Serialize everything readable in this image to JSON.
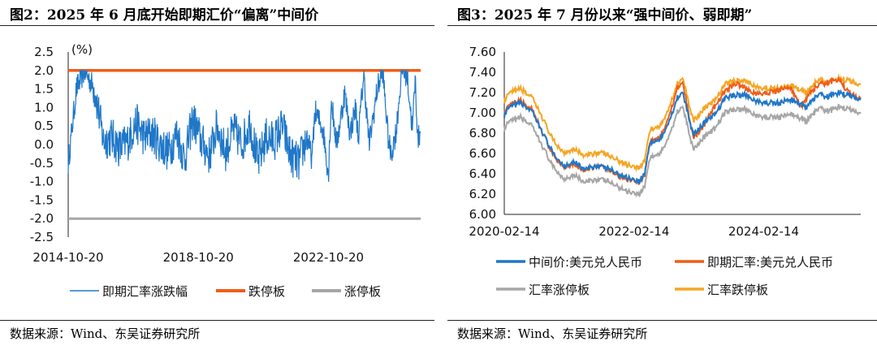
{
  "left": {
    "title": "图2：2025 年 6 月底开始即期汇价“偏离”中间价",
    "source": "数据来源：Wind、东吴证券研究所",
    "chart_data": {
      "type": "line",
      "ylabel": "(%)",
      "ylim": [
        -2.5,
        2.5
      ],
      "y_ticks": [
        "2.5",
        "2.0",
        "1.5",
        "1.0",
        "0.5",
        "0.0",
        "-0.5",
        "-1.0",
        "-1.5",
        "-2.0",
        "-2.5"
      ],
      "x_ticks": [
        "2014-10-20",
        "2018-10-20",
        "2022-10-20"
      ],
      "x_range": [
        "2014-10-20",
        "2025-08-20"
      ],
      "legend": [
        "即期汇率涨跌幅",
        "跌停板",
        "涨停板"
      ],
      "legend_position": "bottom",
      "colors": {
        "spread": "#1f77c8",
        "upper": "#ef5d18",
        "lower": "#a6a6a6"
      },
      "series": [
        {
          "name": "即期汇率涨跌幅",
          "x": [
            "2014-10-20",
            "2015-01-20",
            "2015-04-20",
            "2015-07-20",
            "2015-08-20",
            "2015-11-20",
            "2016-02-20",
            "2016-05-20",
            "2016-08-20",
            "2016-11-20",
            "2017-02-20",
            "2017-05-20",
            "2017-08-20",
            "2017-11-20",
            "2018-02-20",
            "2018-05-20",
            "2018-08-20",
            "2018-11-20",
            "2019-02-20",
            "2019-05-20",
            "2019-08-20",
            "2019-11-20",
            "2020-02-20",
            "2020-05-20",
            "2020-08-20",
            "2020-11-20",
            "2021-02-20",
            "2021-05-20",
            "2021-08-20",
            "2021-11-20",
            "2022-02-20",
            "2022-04-20",
            "2022-05-20",
            "2022-08-20",
            "2022-10-20",
            "2022-11-20",
            "2023-01-20",
            "2023-04-20",
            "2023-06-20",
            "2023-08-20",
            "2023-09-20",
            "2023-11-20",
            "2024-01-20",
            "2024-04-20",
            "2024-06-20",
            "2024-08-20",
            "2024-09-20",
            "2024-11-20",
            "2025-01-20",
            "2025-03-20",
            "2025-05-20",
            "2025-06-20",
            "2025-07-20",
            "2025-08-20"
          ],
          "values": [
            -0.5,
            1.5,
            2.0,
            1.6,
            1.4,
            0.1,
            0.2,
            -0.1,
            0.1,
            0.6,
            0.2,
            0.3,
            0.0,
            -0.2,
            0.3,
            -0.4,
            0.7,
            0.1,
            -0.3,
            0.5,
            -0.2,
            0.4,
            0.0,
            0.6,
            -0.5,
            0.2,
            0.1,
            0.5,
            -0.3,
            -0.5,
            0.2,
            -0.4,
            0.9,
            0.4,
            -0.8,
            1.2,
            0.0,
            1.4,
            0.3,
            1.0,
            0.2,
            1.9,
            0.0,
            1.5,
            2.0,
            0.2,
            -0.3,
            0.4,
            2.0,
            1.9,
            0.4,
            1.8,
            0.1,
            0.4
          ]
        },
        {
          "name": "跌停板",
          "values": [
            2.0,
            2.0
          ]
        },
        {
          "name": "涨停板",
          "values": [
            -2.0,
            -2.0
          ]
        }
      ]
    }
  },
  "right": {
    "title": "图3：2025 年 7 月份以来“强中间价、弱即期”",
    "source": "数据来源：Wind、东吴证券研究所",
    "chart_data": {
      "type": "line",
      "ylim": [
        6.0,
        7.6
      ],
      "y_ticks": [
        "7.60",
        "7.40",
        "7.20",
        "7.00",
        "6.80",
        "6.60",
        "6.40",
        "6.20",
        "6.00"
      ],
      "x_ticks": [
        "2020-02-14",
        "2022-02-14",
        "2024-02-14"
      ],
      "x_range": [
        "2020-02-14",
        "2025-08-14"
      ],
      "legend": [
        "中间价:美元兑人民币",
        "即期汇率:美元兑人民币",
        "汇率涨停板",
        "汇率跌停板"
      ],
      "legend_position": "bottom",
      "colors": {
        "mid": "#1f77c8",
        "spot": "#ef5d18",
        "upper": "#a6a6a6",
        "lower": "#f5a623"
      },
      "x": [
        "2020-02-14",
        "2020-03-14",
        "2020-05-14",
        "2020-07-14",
        "2020-09-14",
        "2020-11-14",
        "2021-01-14",
        "2021-03-14",
        "2021-05-14",
        "2021-07-14",
        "2021-09-14",
        "2021-11-14",
        "2022-01-14",
        "2022-03-14",
        "2022-04-14",
        "2022-05-14",
        "2022-07-14",
        "2022-09-14",
        "2022-10-14",
        "2022-11-14",
        "2023-01-14",
        "2023-03-14",
        "2023-05-14",
        "2023-07-14",
        "2023-09-14",
        "2023-11-14",
        "2024-01-14",
        "2024-03-14",
        "2024-05-14",
        "2024-07-14",
        "2024-09-14",
        "2024-10-14",
        "2024-12-14",
        "2025-02-14",
        "2025-04-14",
        "2025-06-14",
        "2025-08-14"
      ],
      "series": [
        {
          "name": "中间价:美元兑人民币",
          "values": [
            6.98,
            7.05,
            7.1,
            7.02,
            6.82,
            6.6,
            6.48,
            6.52,
            6.44,
            6.48,
            6.46,
            6.4,
            6.36,
            6.33,
            6.4,
            6.7,
            6.74,
            6.98,
            7.15,
            7.2,
            6.78,
            6.9,
            6.98,
            7.15,
            7.18,
            7.17,
            7.1,
            7.1,
            7.1,
            7.13,
            7.08,
            7.05,
            7.18,
            7.16,
            7.2,
            7.17,
            7.14
          ]
        },
        {
          "name": "即期汇率:美元兑人民币",
          "values": [
            7.0,
            7.07,
            7.12,
            7.04,
            6.82,
            6.58,
            6.47,
            6.5,
            6.42,
            6.48,
            6.45,
            6.38,
            6.35,
            6.32,
            6.38,
            6.72,
            6.76,
            7.05,
            7.25,
            7.3,
            6.75,
            6.88,
            7.06,
            7.22,
            7.3,
            7.23,
            7.18,
            7.2,
            7.23,
            7.25,
            7.05,
            7.15,
            7.27,
            7.3,
            7.33,
            7.18,
            7.15
          ]
        },
        {
          "name": "汇率涨停板",
          "values": [
            6.84,
            6.91,
            6.96,
            6.88,
            6.68,
            6.47,
            6.35,
            6.39,
            6.31,
            6.35,
            6.33,
            6.27,
            6.23,
            6.2,
            6.27,
            6.56,
            6.6,
            6.84,
            7.01,
            7.06,
            6.64,
            6.76,
            6.84,
            7.01,
            7.04,
            7.03,
            6.96,
            6.96,
            6.96,
            6.99,
            6.94,
            6.91,
            7.04,
            7.02,
            7.06,
            7.03,
            7.0
          ]
        },
        {
          "name": "汇率跌停板",
          "values": [
            7.12,
            7.19,
            7.24,
            7.16,
            6.96,
            6.73,
            6.61,
            6.65,
            6.57,
            6.61,
            6.59,
            6.53,
            6.49,
            6.46,
            6.53,
            6.83,
            6.87,
            7.12,
            7.29,
            7.34,
            6.92,
            7.04,
            7.12,
            7.29,
            7.32,
            7.31,
            7.24,
            7.24,
            7.24,
            7.27,
            7.22,
            7.19,
            7.32,
            7.3,
            7.34,
            7.31,
            7.28
          ]
        }
      ]
    }
  }
}
